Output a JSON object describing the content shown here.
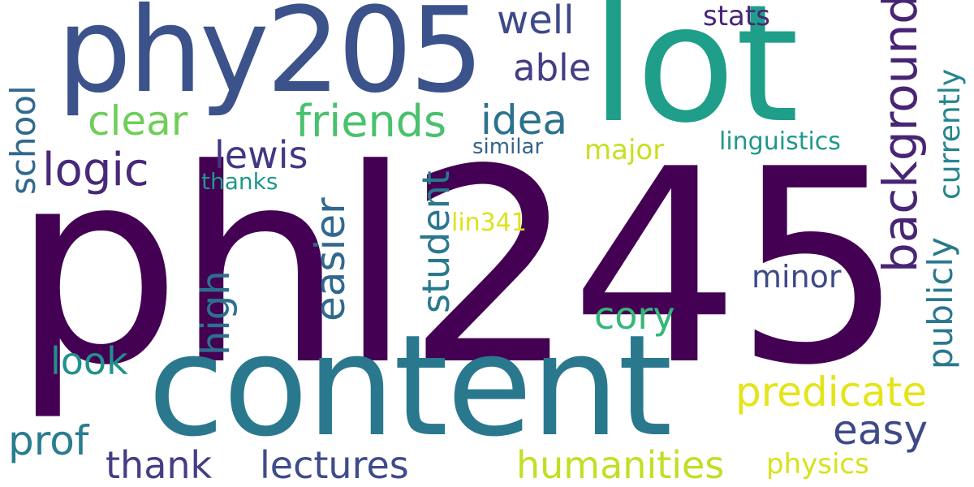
{
  "words": {
    "phl245": {
      "text": "phl245",
      "color": "#440154"
    },
    "content": {
      "text": "content",
      "color": "#2a788e"
    },
    "lot": {
      "text": "lot",
      "color": "#1f9e89"
    },
    "phy205": {
      "text": "phy205",
      "color": "#3b528b"
    },
    "well": {
      "text": "well",
      "color": "#3e4989"
    },
    "stats": {
      "text": "stats",
      "color": "#482677"
    },
    "able": {
      "text": "able",
      "color": "#433e85"
    },
    "background": {
      "text": "background",
      "color": "#482475"
    },
    "currently": {
      "text": "currently",
      "color": "#25858e"
    },
    "clear": {
      "text": "clear",
      "color": "#6ece58"
    },
    "friends": {
      "text": "friends",
      "color": "#4ac16d"
    },
    "idea": {
      "text": "idea",
      "color": "#2c728e"
    },
    "school": {
      "text": "school",
      "color": "#31688e"
    },
    "logic": {
      "text": "logic",
      "color": "#482878"
    },
    "lewis": {
      "text": "lewis",
      "color": "#453781"
    },
    "student": {
      "text": "student",
      "color": "#2a788e"
    },
    "similar": {
      "text": "similar",
      "color": "#33638d"
    },
    "major": {
      "text": "major",
      "color": "#c8e020"
    },
    "linguistics": {
      "text": "linguistics",
      "color": "#1f988b"
    },
    "thanks": {
      "text": "thanks",
      "color": "#1f988b"
    },
    "easier": {
      "text": "easier",
      "color": "#31688e"
    },
    "lin341": {
      "text": "lin341",
      "color": "#dde318"
    },
    "publicly": {
      "text": "publicly",
      "color": "#2a788e"
    },
    "high": {
      "text": "high",
      "color": "#2d708e"
    },
    "minor": {
      "text": "minor",
      "color": "#3e4989"
    },
    "cory": {
      "text": "cory",
      "color": "#35b779"
    },
    "look": {
      "text": "look",
      "color": "#21918c"
    },
    "predicate": {
      "text": "predicate",
      "color": "#e5e419"
    },
    "easy": {
      "text": "easy",
      "color": "#3e4989"
    },
    "prof": {
      "text": "prof",
      "color": "#287d8e"
    },
    "thank": {
      "text": "thank",
      "color": "#433e85"
    },
    "lectures": {
      "text": "lectures",
      "color": "#3e4c8a"
    },
    "humanities": {
      "text": "humanities",
      "color": "#c2df23"
    },
    "physics": {
      "text": "physics",
      "color": "#d8e219"
    }
  }
}
